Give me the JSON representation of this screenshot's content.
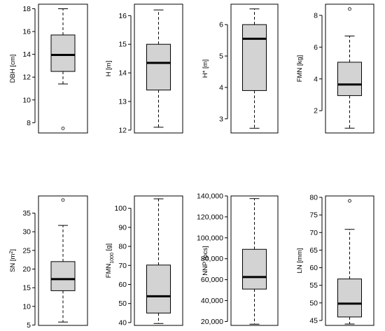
{
  "chart_data": [
    {
      "type": "boxplot",
      "ylabel": "DBH [cm]",
      "yticks": [
        8,
        10,
        12,
        14,
        16,
        18
      ],
      "ylim": [
        7.1,
        18.4
      ],
      "box": {
        "min": 11.4,
        "q1": 12.5,
        "median": 13.95,
        "q3": 15.7,
        "max": 18.0
      },
      "outliers": [
        7.5
      ]
    },
    {
      "type": "boxplot",
      "ylabel": "H [m]",
      "yticks": [
        12,
        13,
        14,
        15,
        16
      ],
      "ylim": [
        11.9,
        16.4
      ],
      "box": {
        "min": 12.1,
        "q1": 13.4,
        "median": 14.35,
        "q3": 15.0,
        "max": 16.2
      },
      "outliers": []
    },
    {
      "type": "boxplot",
      "ylabel": "H* [m]",
      "yticks": [
        3,
        4,
        5,
        6
      ],
      "ylim": [
        2.55,
        6.65
      ],
      "box": {
        "min": 2.7,
        "q1": 3.9,
        "median": 5.55,
        "q3": 6.0,
        "max": 6.5
      },
      "outliers": []
    },
    {
      "type": "boxplot",
      "ylabel": "FMN [kg]",
      "yticks": [
        2,
        4,
        6,
        8
      ],
      "ylim": [
        0.6,
        8.7
      ],
      "box": {
        "min": 0.9,
        "q1": 2.95,
        "median": 3.65,
        "q3": 5.05,
        "max": 6.7
      },
      "outliers": [
        8.4
      ]
    },
    {
      "type": "boxplot",
      "ylabel": "SN [m2]",
      "yticks": [
        5,
        10,
        15,
        20,
        25,
        30,
        35
      ],
      "ylim": [
        4.9,
        39.6
      ],
      "box": {
        "min": 5.8,
        "q1": 14.2,
        "median": 17.3,
        "q3": 22.0,
        "max": 31.7
      },
      "outliers": [
        38.5
      ]
    },
    {
      "type": "boxplot",
      "ylabel": "FMN1000 [g]",
      "yticks": [
        40,
        50,
        60,
        70,
        80,
        90,
        100
      ],
      "ylim": [
        38.5,
        106.5
      ],
      "box": {
        "min": 39.5,
        "q1": 45.0,
        "median": 53.8,
        "q3": 70.2,
        "max": 105.0
      },
      "outliers": []
    },
    {
      "type": "boxplot",
      "ylabel": "NNP [pcs]",
      "yticks": [
        20000,
        40000,
        60000,
        80000,
        100000,
        120000,
        140000
      ],
      "yticklabels": [
        "20,000",
        "40,000",
        "60,000",
        "80,000",
        "100,000",
        "120,000",
        "140,000"
      ],
      "ylim": [
        16300,
        140000
      ],
      "box": {
        "min": 17500,
        "q1": 51000,
        "median": 62500,
        "q3": 89000,
        "max": 137500
      },
      "outliers": []
    },
    {
      "type": "boxplot",
      "ylabel": "LN [mm]",
      "yticks": [
        45,
        50,
        55,
        60,
        65,
        70,
        75,
        80
      ],
      "ylim": [
        43.6,
        80.4
      ],
      "box": {
        "min": 44.0,
        "q1": 46.0,
        "median": 49.8,
        "q3": 56.8,
        "max": 70.9
      },
      "outliers": [
        79.0
      ]
    }
  ]
}
